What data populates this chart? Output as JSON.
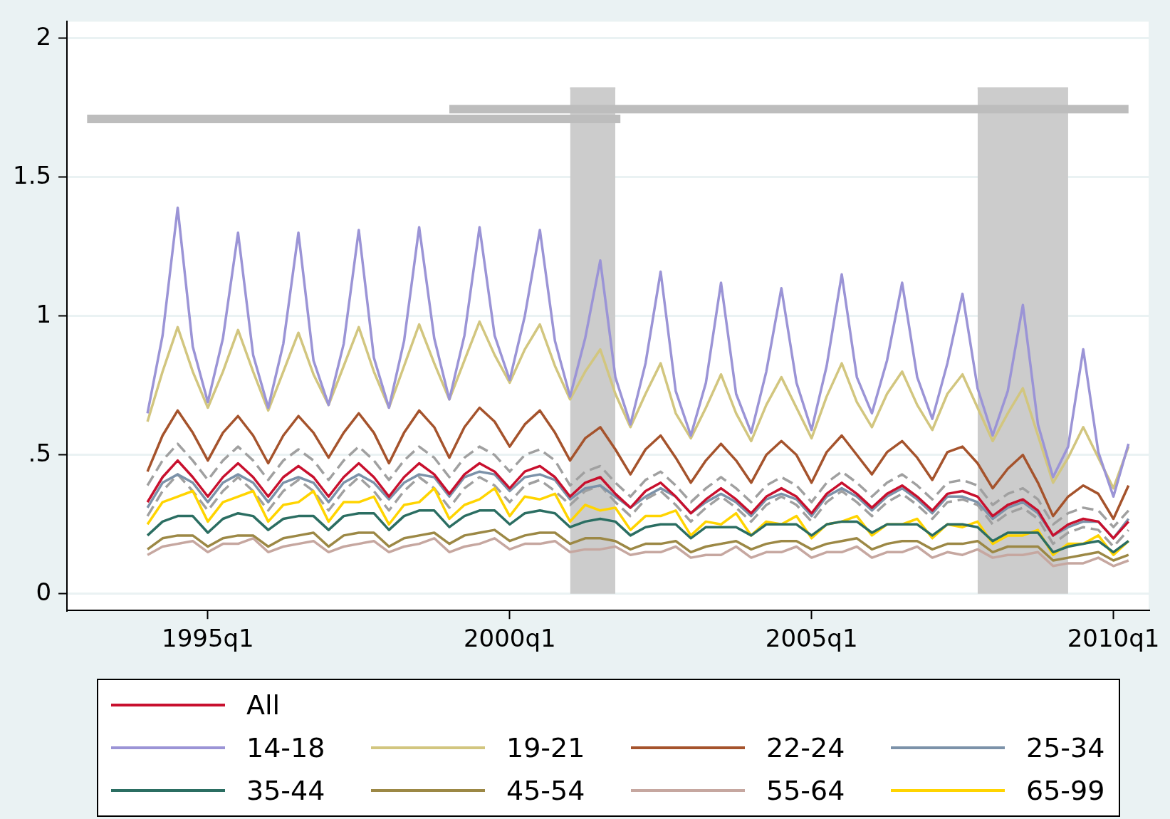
{
  "chart_data": {
    "type": "line",
    "legend": "bottom",
    "grid": "y",
    "xlim": [
      "1992-09",
      "2010-08"
    ],
    "xticks": [
      {
        "value": "1995-01",
        "label": "1995q1"
      },
      {
        "value": "2000-01",
        "label": "2000q1"
      },
      {
        "value": "2005-01",
        "label": "2005q1"
      },
      {
        "value": "2010-01",
        "label": "2010q1"
      }
    ],
    "ylim": [
      -0.06,
      2.06
    ],
    "yticks": [
      0,
      {
        "value": 0.5,
        "label": ".5"
      },
      1,
      1.5,
      2
    ],
    "x": [
      "1994-01",
      "1994-04",
      "1994-07",
      "1994-10",
      "1995-01",
      "1995-04",
      "1995-07",
      "1995-10",
      "1996-01",
      "1996-04",
      "1996-07",
      "1996-10",
      "1997-01",
      "1997-04",
      "1997-07",
      "1997-10",
      "1998-01",
      "1998-04",
      "1998-07",
      "1998-10",
      "1999-01",
      "1999-04",
      "1999-07",
      "1999-10",
      "2000-01",
      "2000-04",
      "2000-07",
      "2000-10",
      "2001-01",
      "2001-04",
      "2001-07",
      "2001-10",
      "2002-01",
      "2002-04",
      "2002-07",
      "2002-10",
      "2003-01",
      "2003-04",
      "2003-07",
      "2003-10",
      "2004-01",
      "2004-04",
      "2004-07",
      "2004-10",
      "2005-01",
      "2005-04",
      "2005-07",
      "2005-10",
      "2006-01",
      "2006-04",
      "2006-07",
      "2006-10",
      "2007-01",
      "2007-04",
      "2007-07",
      "2007-10",
      "2008-01",
      "2008-04",
      "2008-07",
      "2008-10",
      "2009-01",
      "2009-04",
      "2009-07",
      "2009-10",
      "2010-01",
      "2010-04"
    ],
    "series": [
      {
        "type": "area",
        "color": "#cccccc",
        "x": [
          "2001-01",
          "2001-10"
        ],
        "values": [
          1.82,
          1.82
        ]
      },
      {
        "type": "area",
        "color": "#cccccc",
        "x": [
          "2007-10",
          "2009-04"
        ],
        "values": [
          1.82,
          1.82
        ]
      },
      {
        "type": "line",
        "color": "#bdbdbd",
        "x": [
          "1993-01",
          "2001-11"
        ],
        "values": [
          1.71,
          1.71
        ]
      },
      {
        "type": "line",
        "color": "#bdbdbd",
        "x": [
          "1999-01",
          "2010-04"
        ],
        "values": [
          1.745,
          1.745
        ]
      },
      {
        "type": "line",
        "color": "#a0a0a0",
        "line_style": "dashed",
        "values": [
          0.39,
          0.48,
          0.54,
          0.48,
          0.41,
          0.48,
          0.53,
          0.48,
          0.41,
          0.48,
          0.52,
          0.48,
          0.41,
          0.48,
          0.53,
          0.48,
          0.41,
          0.48,
          0.53,
          0.49,
          0.42,
          0.49,
          0.53,
          0.5,
          0.44,
          0.5,
          0.52,
          0.48,
          0.39,
          0.44,
          0.46,
          0.4,
          0.35,
          0.41,
          0.44,
          0.39,
          0.33,
          0.38,
          0.42,
          0.38,
          0.33,
          0.39,
          0.42,
          0.39,
          0.33,
          0.4,
          0.44,
          0.4,
          0.35,
          0.4,
          0.43,
          0.39,
          0.34,
          0.4,
          0.41,
          0.39,
          0.32,
          0.36,
          0.38,
          0.34,
          0.25,
          0.29,
          0.31,
          0.3,
          0.24,
          0.3
        ]
      },
      {
        "type": "line",
        "color": "#a0a0a0",
        "line_style": "dashed",
        "values": [
          0.28,
          0.37,
          0.43,
          0.37,
          0.3,
          0.37,
          0.42,
          0.37,
          0.3,
          0.37,
          0.41,
          0.37,
          0.3,
          0.37,
          0.42,
          0.37,
          0.3,
          0.37,
          0.42,
          0.38,
          0.31,
          0.38,
          0.42,
          0.39,
          0.33,
          0.39,
          0.41,
          0.37,
          0.32,
          0.37,
          0.39,
          0.33,
          0.28,
          0.34,
          0.37,
          0.32,
          0.26,
          0.31,
          0.35,
          0.31,
          0.26,
          0.32,
          0.35,
          0.32,
          0.26,
          0.33,
          0.37,
          0.33,
          0.28,
          0.33,
          0.36,
          0.32,
          0.27,
          0.33,
          0.34,
          0.32,
          0.25,
          0.29,
          0.31,
          0.27,
          0.18,
          0.22,
          0.24,
          0.23,
          0.17,
          0.23
        ]
      },
      {
        "name": "All",
        "color": "#c8102e",
        "values": [
          0.33,
          0.42,
          0.48,
          0.42,
          0.35,
          0.42,
          0.47,
          0.42,
          0.35,
          0.42,
          0.46,
          0.42,
          0.35,
          0.42,
          0.47,
          0.42,
          0.35,
          0.42,
          0.47,
          0.43,
          0.36,
          0.43,
          0.47,
          0.44,
          0.38,
          0.44,
          0.46,
          0.42,
          0.35,
          0.4,
          0.42,
          0.36,
          0.31,
          0.37,
          0.4,
          0.35,
          0.29,
          0.34,
          0.38,
          0.34,
          0.29,
          0.35,
          0.38,
          0.35,
          0.29,
          0.36,
          0.4,
          0.36,
          0.31,
          0.36,
          0.39,
          0.35,
          0.3,
          0.36,
          0.37,
          0.35,
          0.28,
          0.32,
          0.34,
          0.3,
          0.21,
          0.25,
          0.27,
          0.26,
          0.2,
          0.26
        ]
      },
      {
        "name": "14-18",
        "color": "#9b94d6",
        "values": [
          0.65,
          0.93,
          1.39,
          0.89,
          0.69,
          0.92,
          1.3,
          0.86,
          0.67,
          0.9,
          1.3,
          0.84,
          0.68,
          0.9,
          1.31,
          0.85,
          0.67,
          0.91,
          1.32,
          0.92,
          0.7,
          0.93,
          1.32,
          0.93,
          0.77,
          1.0,
          1.31,
          0.91,
          0.71,
          0.92,
          1.2,
          0.78,
          0.61,
          0.83,
          1.16,
          0.73,
          0.57,
          0.76,
          1.12,
          0.72,
          0.58,
          0.8,
          1.1,
          0.76,
          0.59,
          0.82,
          1.15,
          0.78,
          0.65,
          0.84,
          1.12,
          0.78,
          0.63,
          0.83,
          1.08,
          0.74,
          0.57,
          0.73,
          1.04,
          0.61,
          0.42,
          0.53,
          0.88,
          0.51,
          0.35,
          0.54
        ]
      },
      {
        "name": "19-21",
        "color": "#d2c67f",
        "values": [
          0.62,
          0.8,
          0.96,
          0.8,
          0.67,
          0.8,
          0.95,
          0.8,
          0.66,
          0.8,
          0.94,
          0.79,
          0.68,
          0.82,
          0.96,
          0.8,
          0.67,
          0.82,
          0.97,
          0.83,
          0.7,
          0.84,
          0.98,
          0.86,
          0.76,
          0.88,
          0.97,
          0.82,
          0.7,
          0.8,
          0.88,
          0.72,
          0.6,
          0.72,
          0.83,
          0.65,
          0.56,
          0.67,
          0.79,
          0.65,
          0.55,
          0.68,
          0.78,
          0.67,
          0.56,
          0.71,
          0.83,
          0.69,
          0.6,
          0.72,
          0.8,
          0.68,
          0.59,
          0.72,
          0.79,
          0.67,
          0.55,
          0.65,
          0.74,
          0.57,
          0.4,
          0.49,
          0.6,
          0.49,
          0.38,
          0.53
        ]
      },
      {
        "name": "22-24",
        "color": "#a5532c",
        "values": [
          0.44,
          0.57,
          0.66,
          0.58,
          0.48,
          0.58,
          0.64,
          0.57,
          0.47,
          0.57,
          0.64,
          0.58,
          0.49,
          0.58,
          0.65,
          0.58,
          0.47,
          0.58,
          0.66,
          0.6,
          0.49,
          0.6,
          0.67,
          0.62,
          0.53,
          0.61,
          0.66,
          0.58,
          0.48,
          0.56,
          0.6,
          0.52,
          0.43,
          0.52,
          0.57,
          0.49,
          0.4,
          0.48,
          0.54,
          0.48,
          0.4,
          0.5,
          0.55,
          0.5,
          0.4,
          0.51,
          0.57,
          0.5,
          0.43,
          0.51,
          0.55,
          0.49,
          0.41,
          0.51,
          0.53,
          0.47,
          0.38,
          0.45,
          0.5,
          0.4,
          0.28,
          0.35,
          0.39,
          0.36,
          0.27,
          0.39
        ]
      },
      {
        "name": "25-34",
        "color": "#7c92a9",
        "values": [
          0.31,
          0.4,
          0.43,
          0.4,
          0.33,
          0.4,
          0.43,
          0.4,
          0.33,
          0.4,
          0.42,
          0.4,
          0.33,
          0.4,
          0.43,
          0.4,
          0.34,
          0.4,
          0.43,
          0.42,
          0.35,
          0.42,
          0.44,
          0.43,
          0.37,
          0.42,
          0.43,
          0.41,
          0.34,
          0.38,
          0.39,
          0.35,
          0.31,
          0.35,
          0.38,
          0.35,
          0.29,
          0.33,
          0.36,
          0.33,
          0.28,
          0.34,
          0.36,
          0.34,
          0.28,
          0.35,
          0.38,
          0.35,
          0.3,
          0.35,
          0.38,
          0.34,
          0.29,
          0.35,
          0.35,
          0.33,
          0.27,
          0.31,
          0.33,
          0.29,
          0.21,
          0.24,
          0.26,
          0.26,
          0.2,
          0.27
        ]
      },
      {
        "name": "35-44",
        "color": "#2b6e62",
        "values": [
          0.21,
          0.26,
          0.28,
          0.28,
          0.22,
          0.27,
          0.29,
          0.28,
          0.23,
          0.27,
          0.28,
          0.28,
          0.23,
          0.28,
          0.29,
          0.29,
          0.23,
          0.28,
          0.3,
          0.3,
          0.24,
          0.28,
          0.3,
          0.3,
          0.25,
          0.29,
          0.3,
          0.29,
          0.24,
          0.26,
          0.27,
          0.26,
          0.21,
          0.24,
          0.25,
          0.25,
          0.2,
          0.24,
          0.24,
          0.24,
          0.21,
          0.25,
          0.25,
          0.25,
          0.21,
          0.25,
          0.26,
          0.26,
          0.22,
          0.25,
          0.25,
          0.25,
          0.21,
          0.25,
          0.25,
          0.24,
          0.19,
          0.22,
          0.22,
          0.22,
          0.15,
          0.17,
          0.18,
          0.19,
          0.15,
          0.19
        ]
      },
      {
        "name": "45-54",
        "color": "#9c8845",
        "values": [
          0.16,
          0.2,
          0.21,
          0.21,
          0.17,
          0.2,
          0.21,
          0.21,
          0.17,
          0.2,
          0.21,
          0.22,
          0.17,
          0.21,
          0.22,
          0.22,
          0.17,
          0.2,
          0.21,
          0.22,
          0.18,
          0.21,
          0.22,
          0.23,
          0.19,
          0.21,
          0.22,
          0.22,
          0.18,
          0.2,
          0.2,
          0.19,
          0.16,
          0.18,
          0.18,
          0.19,
          0.15,
          0.17,
          0.18,
          0.19,
          0.16,
          0.18,
          0.19,
          0.19,
          0.16,
          0.18,
          0.19,
          0.2,
          0.16,
          0.18,
          0.19,
          0.19,
          0.16,
          0.18,
          0.18,
          0.19,
          0.15,
          0.17,
          0.17,
          0.17,
          0.12,
          0.13,
          0.14,
          0.15,
          0.12,
          0.14
        ]
      },
      {
        "name": "55-64",
        "color": "#c6a7a0",
        "values": [
          0.14,
          0.17,
          0.18,
          0.19,
          0.15,
          0.18,
          0.18,
          0.2,
          0.15,
          0.17,
          0.18,
          0.19,
          0.15,
          0.17,
          0.18,
          0.19,
          0.15,
          0.17,
          0.18,
          0.2,
          0.15,
          0.17,
          0.18,
          0.2,
          0.16,
          0.18,
          0.18,
          0.19,
          0.15,
          0.16,
          0.16,
          0.17,
          0.14,
          0.15,
          0.15,
          0.17,
          0.13,
          0.14,
          0.14,
          0.17,
          0.13,
          0.15,
          0.15,
          0.17,
          0.13,
          0.15,
          0.15,
          0.17,
          0.13,
          0.15,
          0.15,
          0.17,
          0.13,
          0.15,
          0.14,
          0.16,
          0.13,
          0.14,
          0.14,
          0.15,
          0.1,
          0.11,
          0.11,
          0.13,
          0.1,
          0.12
        ]
      },
      {
        "name": "65-99",
        "color": "#ffd400",
        "values": [
          0.25,
          0.33,
          0.35,
          0.37,
          0.26,
          0.33,
          0.35,
          0.37,
          0.26,
          0.32,
          0.33,
          0.37,
          0.26,
          0.33,
          0.33,
          0.35,
          0.25,
          0.32,
          0.33,
          0.38,
          0.27,
          0.32,
          0.34,
          0.38,
          0.28,
          0.35,
          0.34,
          0.36,
          0.26,
          0.32,
          0.3,
          0.31,
          0.23,
          0.28,
          0.28,
          0.3,
          0.21,
          0.26,
          0.25,
          0.29,
          0.21,
          0.26,
          0.25,
          0.28,
          0.2,
          0.25,
          0.26,
          0.28,
          0.21,
          0.25,
          0.25,
          0.27,
          0.2,
          0.25,
          0.24,
          0.26,
          0.18,
          0.21,
          0.21,
          0.23,
          0.14,
          0.18,
          0.18,
          0.21,
          0.14,
          0.19
        ]
      }
    ]
  }
}
